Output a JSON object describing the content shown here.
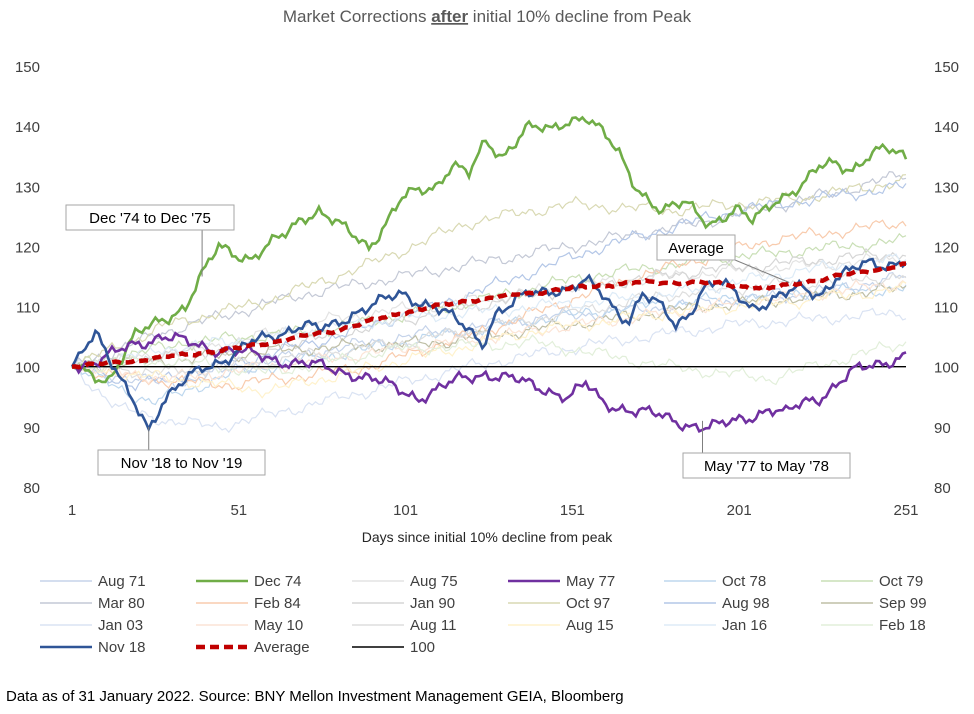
{
  "chart_data": {
    "type": "line",
    "title_parts": [
      "Market Corrections ",
      "after",
      " initial 10% decline from Peak"
    ],
    "xlabel": "Days since initial  10% decline from peak",
    "ylabel": "",
    "xlim": [
      1,
      251
    ],
    "ylim": [
      80,
      150
    ],
    "x_ticks": [
      1,
      51,
      101,
      151,
      201,
      251
    ],
    "y_ticks": [
      80,
      90,
      100,
      110,
      120,
      130,
      140,
      150
    ],
    "series": [
      {
        "name": "Aug 71",
        "color": "#c5d3ea",
        "style": "faint",
        "knots": [
          [
            1,
            100
          ],
          [
            30,
            97
          ],
          [
            60,
            101
          ],
          [
            100,
            105
          ],
          [
            140,
            108
          ],
          [
            180,
            110
          ],
          [
            220,
            112
          ],
          [
            251,
            115
          ]
        ]
      },
      {
        "name": "Dec 74",
        "color": "#70ad47",
        "style": "highlight",
        "knots": [
          [
            1,
            100
          ],
          [
            5,
            99
          ],
          [
            12,
            98
          ],
          [
            20,
            105
          ],
          [
            28,
            108
          ],
          [
            35,
            110
          ],
          [
            40,
            115
          ],
          [
            45,
            120
          ],
          [
            55,
            118
          ],
          [
            65,
            122
          ],
          [
            70,
            125
          ],
          [
            75,
            126
          ],
          [
            82,
            123
          ],
          [
            90,
            120
          ],
          [
            100,
            128
          ],
          [
            110,
            130
          ],
          [
            115,
            134
          ],
          [
            120,
            132
          ],
          [
            125,
            137
          ],
          [
            130,
            135
          ],
          [
            137,
            140
          ],
          [
            145,
            139
          ],
          [
            150,
            141
          ],
          [
            155,
            142
          ],
          [
            160,
            139
          ],
          [
            165,
            135
          ],
          [
            170,
            130
          ],
          [
            178,
            126
          ],
          [
            185,
            127
          ],
          [
            192,
            124
          ],
          [
            200,
            126
          ],
          [
            205,
            124
          ],
          [
            212,
            128
          ],
          [
            220,
            130
          ],
          [
            225,
            133
          ],
          [
            230,
            134
          ],
          [
            235,
            133
          ],
          [
            240,
            135
          ],
          [
            245,
            136
          ],
          [
            251,
            135
          ]
        ]
      },
      {
        "name": "Aug 75",
        "color": "#e3e3e3",
        "style": "faint",
        "knots": [
          [
            1,
            100
          ],
          [
            40,
            103
          ],
          [
            80,
            108
          ],
          [
            120,
            111
          ],
          [
            160,
            114
          ],
          [
            200,
            116
          ],
          [
            251,
            118
          ]
        ]
      },
      {
        "name": "May 77",
        "color": "#7030a0",
        "style": "highlight",
        "knots": [
          [
            1,
            100
          ],
          [
            10,
            101
          ],
          [
            20,
            104
          ],
          [
            28,
            105
          ],
          [
            35,
            104
          ],
          [
            45,
            103
          ],
          [
            55,
            102
          ],
          [
            65,
            101
          ],
          [
            75,
            100
          ],
          [
            85,
            99
          ],
          [
            95,
            97
          ],
          [
            100,
            96
          ],
          [
            105,
            95
          ],
          [
            110,
            96
          ],
          [
            118,
            98
          ],
          [
            125,
            99
          ],
          [
            132,
            98
          ],
          [
            138,
            97
          ],
          [
            145,
            96
          ],
          [
            150,
            95
          ],
          [
            155,
            97
          ],
          [
            160,
            94
          ],
          [
            168,
            93
          ],
          [
            175,
            92
          ],
          [
            182,
            91
          ],
          [
            190,
            90
          ],
          [
            195,
            90
          ],
          [
            200,
            91
          ],
          [
            205,
            92
          ],
          [
            210,
            93
          ],
          [
            215,
            92
          ],
          [
            220,
            94
          ],
          [
            225,
            95
          ],
          [
            230,
            97
          ],
          [
            235,
            99
          ],
          [
            240,
            100
          ],
          [
            245,
            101
          ],
          [
            251,
            102
          ]
        ]
      },
      {
        "name": "Oct 78",
        "color": "#bdd7ee",
        "style": "faint",
        "knots": [
          [
            1,
            100
          ],
          [
            25,
            94
          ],
          [
            50,
            99
          ],
          [
            90,
            103
          ],
          [
            130,
            107
          ],
          [
            170,
            110
          ],
          [
            210,
            112
          ],
          [
            251,
            113
          ]
        ]
      },
      {
        "name": "Oct 79",
        "color": "#c9dfb6",
        "style": "faint",
        "knots": [
          [
            1,
            100
          ],
          [
            35,
            104
          ],
          [
            75,
            106
          ],
          [
            115,
            110
          ],
          [
            155,
            115
          ],
          [
            195,
            118
          ],
          [
            251,
            121
          ]
        ]
      },
      {
        "name": "Mar 80",
        "color": "#c4c9d6",
        "style": "faint",
        "knots": [
          [
            1,
            100
          ],
          [
            30,
            106
          ],
          [
            70,
            112
          ],
          [
            110,
            116
          ],
          [
            150,
            120
          ],
          [
            190,
            124
          ],
          [
            230,
            129
          ],
          [
            251,
            132
          ]
        ]
      },
      {
        "name": "Feb 84",
        "color": "#f8cbad",
        "style": "faint",
        "knots": [
          [
            1,
            100
          ],
          [
            20,
            98
          ],
          [
            50,
            97
          ],
          [
            90,
            100
          ],
          [
            130,
            107
          ],
          [
            170,
            115
          ],
          [
            210,
            121
          ],
          [
            251,
            124
          ]
        ]
      },
      {
        "name": "Jan 90",
        "color": "#d6d6d6",
        "style": "faint",
        "knots": [
          [
            1,
            100
          ],
          [
            30,
            102
          ],
          [
            70,
            104
          ],
          [
            110,
            109
          ],
          [
            150,
            113
          ],
          [
            190,
            116
          ],
          [
            251,
            119
          ]
        ]
      },
      {
        "name": "Oct 97",
        "color": "#d9d9b3",
        "style": "faint",
        "knots": [
          [
            1,
            100
          ],
          [
            30,
            107
          ],
          [
            60,
            111
          ],
          [
            90,
            117
          ],
          [
            120,
            124
          ],
          [
            150,
            127
          ],
          [
            180,
            126
          ],
          [
            220,
            128
          ],
          [
            251,
            131
          ]
        ]
      },
      {
        "name": "Aug 98",
        "color": "#b4c7e7",
        "style": "faint",
        "knots": [
          [
            1,
            100
          ],
          [
            20,
            97
          ],
          [
            45,
            100
          ],
          [
            80,
            105
          ],
          [
            120,
            112
          ],
          [
            160,
            120
          ],
          [
            200,
            126
          ],
          [
            251,
            130
          ]
        ]
      },
      {
        "name": "Sep 99",
        "color": "#bfbfa6",
        "style": "faint",
        "knots": [
          [
            1,
            100
          ],
          [
            30,
            101
          ],
          [
            70,
            103
          ],
          [
            110,
            104
          ],
          [
            150,
            107
          ],
          [
            190,
            110
          ],
          [
            251,
            113
          ]
        ]
      },
      {
        "name": "Jan 03",
        "color": "#dae3f3",
        "style": "faint",
        "knots": [
          [
            1,
            100
          ],
          [
            15,
            93
          ],
          [
            30,
            91
          ],
          [
            45,
            90
          ],
          [
            60,
            92
          ],
          [
            90,
            96
          ],
          [
            120,
            100
          ],
          [
            160,
            104
          ],
          [
            200,
            107
          ],
          [
            251,
            109
          ]
        ]
      },
      {
        "name": "May 10",
        "color": "#fce4d6",
        "style": "faint",
        "knots": [
          [
            1,
            100
          ],
          [
            30,
            98
          ],
          [
            60,
            100
          ],
          [
            100,
            103
          ],
          [
            140,
            106
          ],
          [
            180,
            109
          ],
          [
            220,
            112
          ],
          [
            251,
            114
          ]
        ]
      },
      {
        "name": "Aug 11",
        "color": "#dedede",
        "style": "faint",
        "knots": [
          [
            1,
            100
          ],
          [
            30,
            99
          ],
          [
            60,
            101
          ],
          [
            100,
            104
          ],
          [
            140,
            108
          ],
          [
            180,
            112
          ],
          [
            220,
            114
          ],
          [
            251,
            115
          ]
        ]
      },
      {
        "name": "Aug 15",
        "color": "#fff2cc",
        "style": "faint",
        "knots": [
          [
            1,
            100
          ],
          [
            30,
            98
          ],
          [
            60,
            96
          ],
          [
            100,
            101
          ],
          [
            140,
            106
          ],
          [
            180,
            109
          ],
          [
            220,
            111
          ],
          [
            251,
            113
          ]
        ]
      },
      {
        "name": "Jan 16",
        "color": "#ddebf7",
        "style": "faint",
        "knots": [
          [
            1,
            100
          ],
          [
            30,
            103
          ],
          [
            60,
            105
          ],
          [
            100,
            108
          ],
          [
            140,
            110
          ],
          [
            180,
            112
          ],
          [
            220,
            116
          ],
          [
            251,
            118
          ]
        ]
      },
      {
        "name": "Feb 18",
        "color": "#e2efda",
        "style": "faint",
        "knots": [
          [
            1,
            100
          ],
          [
            30,
            101
          ],
          [
            60,
            99
          ],
          [
            100,
            103
          ],
          [
            140,
            104
          ],
          [
            180,
            100
          ],
          [
            210,
            98
          ],
          [
            230,
            101
          ],
          [
            251,
            104
          ]
        ]
      },
      {
        "name": "Nov 18",
        "color": "#2f5597",
        "style": "highlight",
        "knots": [
          [
            1,
            100
          ],
          [
            5,
            104
          ],
          [
            8,
            106
          ],
          [
            12,
            101
          ],
          [
            16,
            97
          ],
          [
            20,
            94
          ],
          [
            24,
            90
          ],
          [
            28,
            94
          ],
          [
            32,
            96
          ],
          [
            36,
            98
          ],
          [
            40,
            100
          ],
          [
            45,
            101
          ],
          [
            50,
            102
          ],
          [
            55,
            104
          ],
          [
            60,
            105
          ],
          [
            65,
            106
          ],
          [
            70,
            107
          ],
          [
            75,
            106
          ],
          [
            80,
            107
          ],
          [
            85,
            109
          ],
          [
            90,
            110
          ],
          [
            95,
            111
          ],
          [
            100,
            112
          ],
          [
            105,
            111
          ],
          [
            110,
            110
          ],
          [
            115,
            108
          ],
          [
            120,
            106
          ],
          [
            124,
            104
          ],
          [
            128,
            109
          ],
          [
            132,
            110
          ],
          [
            138,
            112
          ],
          [
            145,
            113
          ],
          [
            150,
            113
          ],
          [
            155,
            114
          ],
          [
            160,
            112
          ],
          [
            165,
            109
          ],
          [
            168,
            108
          ],
          [
            172,
            112
          ],
          [
            177,
            110
          ],
          [
            182,
            107
          ],
          [
            186,
            109
          ],
          [
            190,
            113
          ],
          [
            195,
            114
          ],
          [
            200,
            112
          ],
          [
            205,
            110
          ],
          [
            210,
            111
          ],
          [
            215,
            112
          ],
          [
            220,
            113
          ],
          [
            225,
            112
          ],
          [
            230,
            115
          ],
          [
            235,
            116
          ],
          [
            240,
            117
          ],
          [
            245,
            117
          ],
          [
            251,
            118
          ]
        ]
      },
      {
        "name": "Average",
        "color": "#c00000",
        "style": "average",
        "knots": [
          [
            1,
            100
          ],
          [
            20,
            101
          ],
          [
            50,
            103
          ],
          [
            80,
            106
          ],
          [
            100,
            109
          ],
          [
            120,
            111
          ],
          [
            150,
            113
          ],
          [
            170,
            114
          ],
          [
            190,
            114
          ],
          [
            210,
            113
          ],
          [
            230,
            115
          ],
          [
            251,
            117
          ]
        ]
      },
      {
        "name": "100",
        "color": "#000000",
        "style": "baseline",
        "knots": [
          [
            1,
            100
          ],
          [
            251,
            100
          ]
        ]
      }
    ],
    "annotations": [
      {
        "label": "Dec '74 to Dec '75",
        "target_x": 40,
        "target_y": 115
      },
      {
        "label": "Nov '18 to Nov '19",
        "target_x": 24,
        "target_y": 90
      },
      {
        "label": "May '77 to May '78",
        "target_x": 190,
        "target_y": 91
      },
      {
        "label": "Average",
        "target_x": 216,
        "target_y": 114
      }
    ]
  },
  "footer": "Data as of 31 January 2022. Source: BNY  Mellon Investment Management GEIA, Bloomberg"
}
